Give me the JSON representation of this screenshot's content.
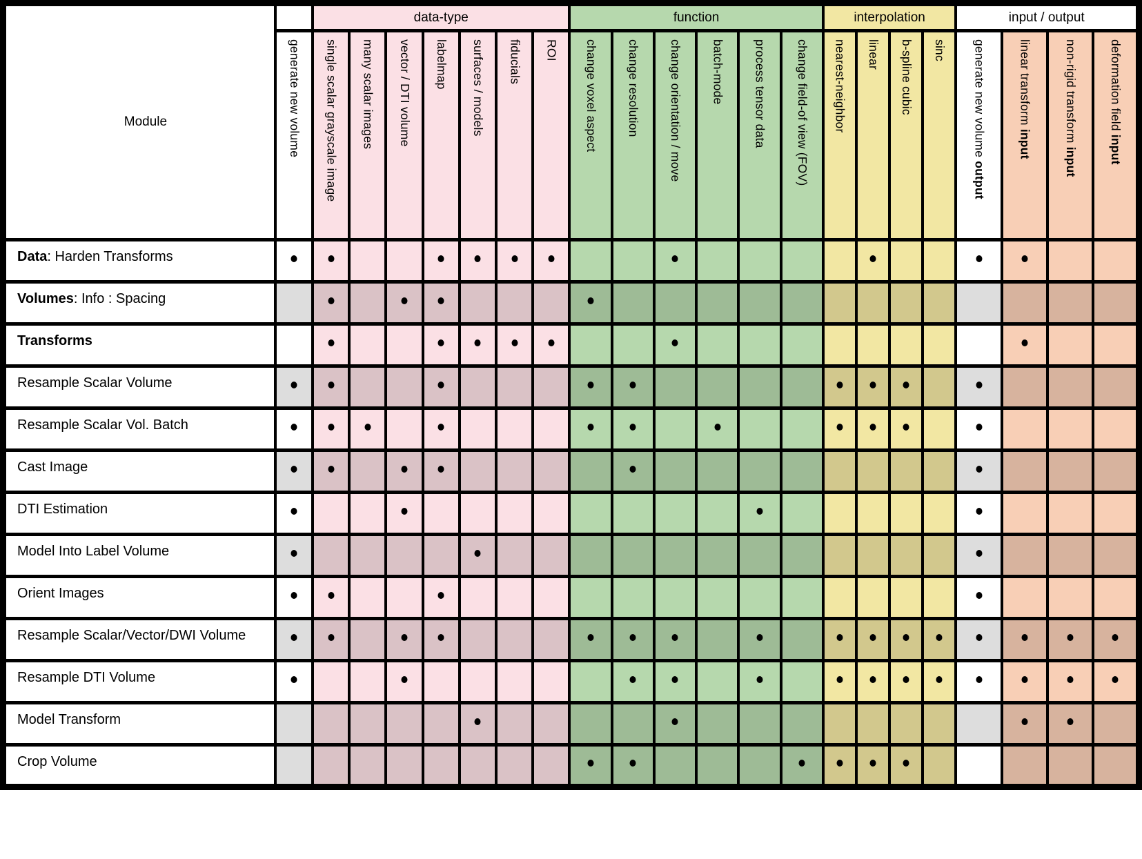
{
  "matrix": {
    "module_header": "Module",
    "dot_symbol": "•",
    "colors": {
      "pink": "#fbe0e5",
      "green": "#b6d8ad",
      "yellow": "#f2e7a3",
      "salmon": "#f8cfb6",
      "white": "#ffffff",
      "shaded_gray": "#dcdcdc",
      "border": "#000000"
    },
    "groups": [
      {
        "label": "",
        "color": "white",
        "span": 1
      },
      {
        "label": "data-type",
        "color": "pink",
        "span": 7
      },
      {
        "label": "function",
        "color": "green",
        "span": 6
      },
      {
        "label": "interpolation",
        "color": "yellow",
        "span": 4
      },
      {
        "label": "input / output",
        "color": "white",
        "span": 4
      }
    ],
    "columns": [
      {
        "color": "white",
        "parts": [
          {
            "text": "generate new volume",
            "bold": false
          }
        ]
      },
      {
        "color": "pink",
        "parts": [
          {
            "text": "single scalar grayscale image",
            "bold": false
          }
        ]
      },
      {
        "color": "pink",
        "parts": [
          {
            "text": "many scalar images",
            "bold": false
          }
        ]
      },
      {
        "color": "pink",
        "parts": [
          {
            "text": "vector / DTI volume",
            "bold": false
          }
        ]
      },
      {
        "color": "pink",
        "parts": [
          {
            "text": "labelmap",
            "bold": false
          }
        ]
      },
      {
        "color": "pink",
        "parts": [
          {
            "text": "surfaces / models",
            "bold": false
          }
        ]
      },
      {
        "color": "pink",
        "parts": [
          {
            "text": "fiducials",
            "bold": false
          }
        ]
      },
      {
        "color": "pink",
        "parts": [
          {
            "text": "ROI",
            "bold": false
          }
        ]
      },
      {
        "color": "green",
        "parts": [
          {
            "text": "change voxel aspect",
            "bold": false
          }
        ]
      },
      {
        "color": "green",
        "parts": [
          {
            "text": "change resolution",
            "bold": false
          }
        ]
      },
      {
        "color": "green",
        "parts": [
          {
            "text": "change orientation / move",
            "bold": false
          }
        ]
      },
      {
        "color": "green",
        "parts": [
          {
            "text": "batch-mode",
            "bold": false
          }
        ]
      },
      {
        "color": "green",
        "parts": [
          {
            "text": "process tensor data",
            "bold": false
          }
        ]
      },
      {
        "color": "green",
        "parts": [
          {
            "text": "change field-of view (FOV)",
            "bold": false
          }
        ]
      },
      {
        "color": "yellow",
        "parts": [
          {
            "text": "nearest-neighbor",
            "bold": false
          }
        ]
      },
      {
        "color": "yellow",
        "parts": [
          {
            "text": "linear",
            "bold": false
          }
        ]
      },
      {
        "color": "yellow",
        "parts": [
          {
            "text": "b-spline cubic",
            "bold": false
          }
        ]
      },
      {
        "color": "yellow",
        "parts": [
          {
            "text": "sinc",
            "bold": false
          }
        ]
      },
      {
        "color": "white",
        "parts": [
          {
            "text": "generate new volume ",
            "bold": false
          },
          {
            "text": "output",
            "bold": true
          }
        ]
      },
      {
        "color": "salmon",
        "parts": [
          {
            "text": "linear transform ",
            "bold": false
          },
          {
            "text": "input",
            "bold": true
          }
        ]
      },
      {
        "color": "salmon",
        "parts": [
          {
            "text": "non-rigid transform ",
            "bold": false
          },
          {
            "text": "input",
            "bold": true
          }
        ]
      },
      {
        "color": "salmon",
        "parts": [
          {
            "text": "deformation field ",
            "bold": false
          },
          {
            "text": "input",
            "bold": true
          }
        ]
      }
    ],
    "rows": [
      {
        "label_parts": [
          {
            "text": "Data",
            "bold": true
          },
          {
            "text": ": Harden Transforms",
            "bold": false
          }
        ],
        "shaded": false,
        "unshaded_cols": [],
        "dots": [
          0,
          1,
          4,
          5,
          6,
          7,
          10,
          15,
          18,
          19
        ]
      },
      {
        "label_parts": [
          {
            "text": "Volumes",
            "bold": true
          },
          {
            "text": ": Info : Spacing",
            "bold": false
          }
        ],
        "shaded": true,
        "unshaded_cols": [],
        "dots": [
          1,
          3,
          4,
          8
        ]
      },
      {
        "label_parts": [
          {
            "text": "Transforms",
            "bold": true
          }
        ],
        "shaded": false,
        "unshaded_cols": [],
        "dots": [
          1,
          4,
          5,
          6,
          7,
          10,
          19
        ]
      },
      {
        "label_parts": [
          {
            "text": "Resample Scalar Volume",
            "bold": false
          }
        ],
        "shaded": true,
        "unshaded_cols": [],
        "dots": [
          0,
          1,
          4,
          8,
          9,
          14,
          15,
          16,
          18
        ]
      },
      {
        "label_parts": [
          {
            "text": "Resample Scalar Vol. Batch",
            "bold": false
          }
        ],
        "shaded": false,
        "unshaded_cols": [],
        "dots": [
          0,
          1,
          2,
          4,
          8,
          9,
          11,
          14,
          15,
          16,
          18
        ]
      },
      {
        "label_parts": [
          {
            "text": "Cast Image",
            "bold": false
          }
        ],
        "shaded": true,
        "unshaded_cols": [],
        "dots": [
          0,
          1,
          3,
          4,
          9,
          18
        ]
      },
      {
        "label_parts": [
          {
            "text": "DTI Estimation",
            "bold": false
          }
        ],
        "shaded": false,
        "unshaded_cols": [],
        "dots": [
          0,
          3,
          12,
          18
        ]
      },
      {
        "label_parts": [
          {
            "text": "Model Into Label Volume",
            "bold": false
          }
        ],
        "shaded": true,
        "unshaded_cols": [],
        "dots": [
          0,
          5,
          18
        ]
      },
      {
        "label_parts": [
          {
            "text": "Orient Images",
            "bold": false
          }
        ],
        "shaded": false,
        "unshaded_cols": [],
        "dots": [
          0,
          1,
          4,
          18
        ]
      },
      {
        "label_parts": [
          {
            "text": "Resample Scalar/Vector/DWI Volume",
            "bold": false
          }
        ],
        "shaded": true,
        "unshaded_cols": [],
        "dots": [
          0,
          1,
          3,
          4,
          8,
          9,
          10,
          12,
          14,
          15,
          16,
          17,
          18,
          19,
          20,
          21
        ]
      },
      {
        "label_parts": [
          {
            "text": "Resample DTI Volume",
            "bold": false
          }
        ],
        "shaded": false,
        "unshaded_cols": [],
        "dots": [
          0,
          3,
          9,
          10,
          12,
          14,
          15,
          16,
          17,
          18,
          19,
          20,
          21
        ]
      },
      {
        "label_parts": [
          {
            "text": "Model Transform",
            "bold": false
          }
        ],
        "shaded": true,
        "unshaded_cols": [],
        "dots": [
          5,
          10,
          19,
          20
        ]
      },
      {
        "label_parts": [
          {
            "text": "Crop Volume",
            "bold": false
          }
        ],
        "shaded": true,
        "unshaded_cols": [
          18
        ],
        "dots": [
          8,
          9,
          13,
          14,
          15,
          16
        ]
      }
    ]
  }
}
